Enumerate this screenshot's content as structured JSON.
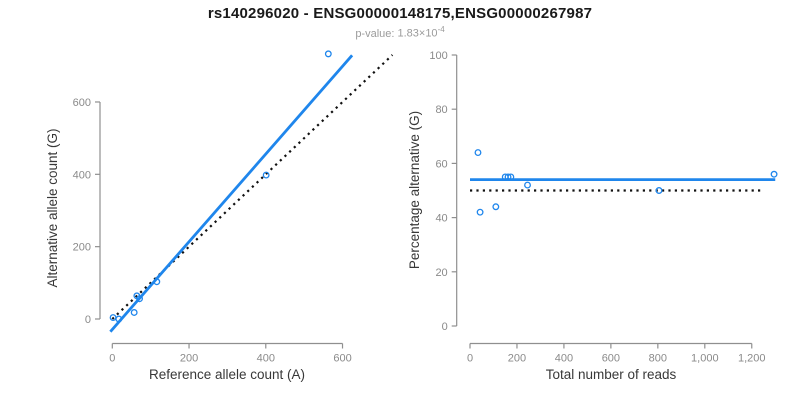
{
  "header": {
    "title": "rs140296020 - ENSG00000148175,ENSG00000267987",
    "pvalue_label": "p-value:",
    "pvalue_mantissa": "1.83",
    "pvalue_times": "×",
    "pvalue_base": "10",
    "pvalue_exponent": "-4"
  },
  "colors": {
    "accent_blue": "#1f86ec",
    "dotted_black": "#111111",
    "axis_gray": "#8f8f8f",
    "tick_label_gray": "#8a8a8a",
    "axis_title_dark": "#383838"
  },
  "chart_data": [
    {
      "type": "scatter",
      "panel": "left",
      "xlabel": "Reference allele count (A)",
      "ylabel": "Alternative allele count (G)",
      "xlim": [
        0,
        630
      ],
      "ylim": [
        0,
        740
      ],
      "xticks": [
        0,
        200,
        400,
        600
      ],
      "yticks": [
        0,
        200,
        400,
        600
      ],
      "xtick_labels": [
        "0",
        "200",
        "400",
        "600"
      ],
      "ytick_labels": [
        "0",
        "200",
        "400",
        "600"
      ],
      "grid": false,
      "points": [
        [
          2,
          4
        ],
        [
          17,
          0
        ],
        [
          57,
          18
        ],
        [
          64,
          64
        ],
        [
          71,
          56
        ],
        [
          116,
          103
        ],
        [
          401,
          398
        ],
        [
          563,
          733
        ]
      ],
      "fit_line": {
        "x1": -5,
        "y1": -35,
        "x2": 625,
        "y2": 729,
        "style": "solid",
        "color": "blue"
      },
      "identity_line": {
        "x1": 0,
        "y1": 0,
        "x2": 730,
        "y2": 730,
        "style": "dotted",
        "color": "black"
      }
    },
    {
      "type": "scatter",
      "panel": "right",
      "xlabel": "Total number of reads",
      "ylabel": "Percentage alternative (G)",
      "xlim": [
        0,
        1300
      ],
      "ylim": [
        0,
        100
      ],
      "xticks": [
        0,
        200,
        400,
        600,
        800,
        1000,
        1200
      ],
      "yticks": [
        0,
        20,
        40,
        60,
        80,
        100
      ],
      "xtick_labels": [
        "0",
        "200",
        "400",
        "600",
        "800",
        "1,000",
        "1,200"
      ],
      "ytick_labels": [
        "0",
        "20",
        "40",
        "60",
        "80",
        "100"
      ],
      "grid": false,
      "points": [
        [
          34,
          64
        ],
        [
          43,
          42
        ],
        [
          110,
          44
        ],
        [
          150,
          55
        ],
        [
          162,
          55
        ],
        [
          174,
          55
        ],
        [
          245,
          52
        ],
        [
          805,
          50
        ],
        [
          1295,
          56
        ]
      ],
      "mean_line": {
        "y": 54,
        "x1": 0,
        "x2": 1300,
        "style": "solid",
        "color": "blue"
      },
      "null_line": {
        "y": 50,
        "x1": 0,
        "x2": 1250,
        "style": "dotted",
        "color": "black"
      }
    }
  ]
}
